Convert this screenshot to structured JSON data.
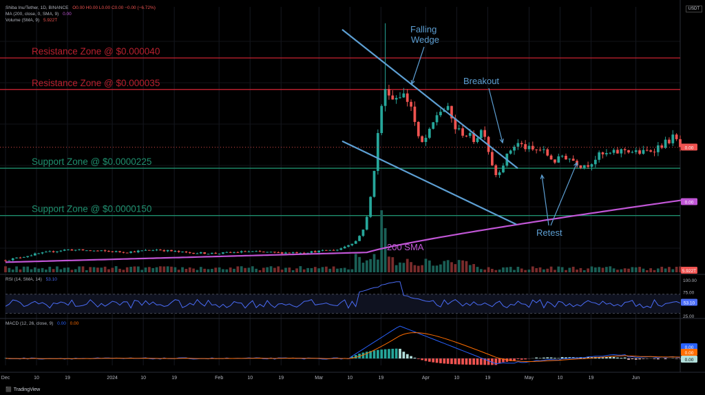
{
  "header": {
    "symbol_line": "Shiba Inu/Tether, 1D, BINANCE",
    "ohlc": "O0.00  H0.00  L0.00  C0.00  −0.00 (−6.72%)",
    "ma_label": "MA (200, close, 0, SMA, 9)",
    "ma_value": "0.00",
    "volume_label": "Volume (SMA, 9)",
    "volume_value": "5.922T",
    "currency": "USDT"
  },
  "rsi_panel": {
    "label": "RSI (14, SMA, 14)",
    "value": "53.10"
  },
  "macd_panel": {
    "label": "MACD (12, 26, close, 9)",
    "macd_value": "0.00",
    "signal_value": "0.00"
  },
  "brand": "TradingView",
  "colors": {
    "resistance": "#b8202e",
    "support": "#1f8f6e",
    "wedge": "#5d9fd3",
    "sma": "#c156d6",
    "up": "#26a69a",
    "down": "#ef5350",
    "rsi": "#4a6cf7",
    "macd": "#2962ff",
    "signal": "#ff6d00"
  },
  "chart_data": [
    {
      "type": "candlestick",
      "title": "Shiba Inu/Tether, 1D, BINANCE",
      "x_ticks": [
        "Dec",
        "10",
        "19",
        "2024",
        "10",
        "19",
        "Feb",
        "10",
        "19",
        "Mar",
        "10",
        "19",
        "Apr",
        "10",
        "19",
        "May",
        "10",
        "19",
        "Jun"
      ],
      "y_unit": "USDT",
      "y_range": [
        6e-06,
        4.7e-05
      ],
      "price_labels": [
        "0.00",
        "0.00"
      ],
      "annotations": [
        {
          "text": "Resistance Zone @ $0.000040",
          "price": 4e-05
        },
        {
          "text": "Resistance Zone @ $0.000035",
          "price": 3.5e-05
        },
        {
          "text": "Support Zone @ $0.0000225",
          "price": 2.25e-05
        },
        {
          "text": "Support Zone @ $0.0000150",
          "price": 1.5e-05
        },
        {
          "text": "Falling Wedge"
        },
        {
          "text": "Breakout"
        },
        {
          "text": "Retest"
        },
        {
          "text": "200 SMA"
        }
      ],
      "volume_label": "5.922T"
    },
    {
      "type": "line",
      "title": "RSI (14, SMA, 14)",
      "y_ticks": [
        "100.00",
        "75.00",
        "25.00"
      ],
      "band": [
        30,
        70
      ],
      "last_value": 53.1
    },
    {
      "type": "line",
      "title": "MACD (12, 26, close, 9)",
      "labels": [
        "0.00",
        "0.00",
        "0.00"
      ]
    }
  ]
}
